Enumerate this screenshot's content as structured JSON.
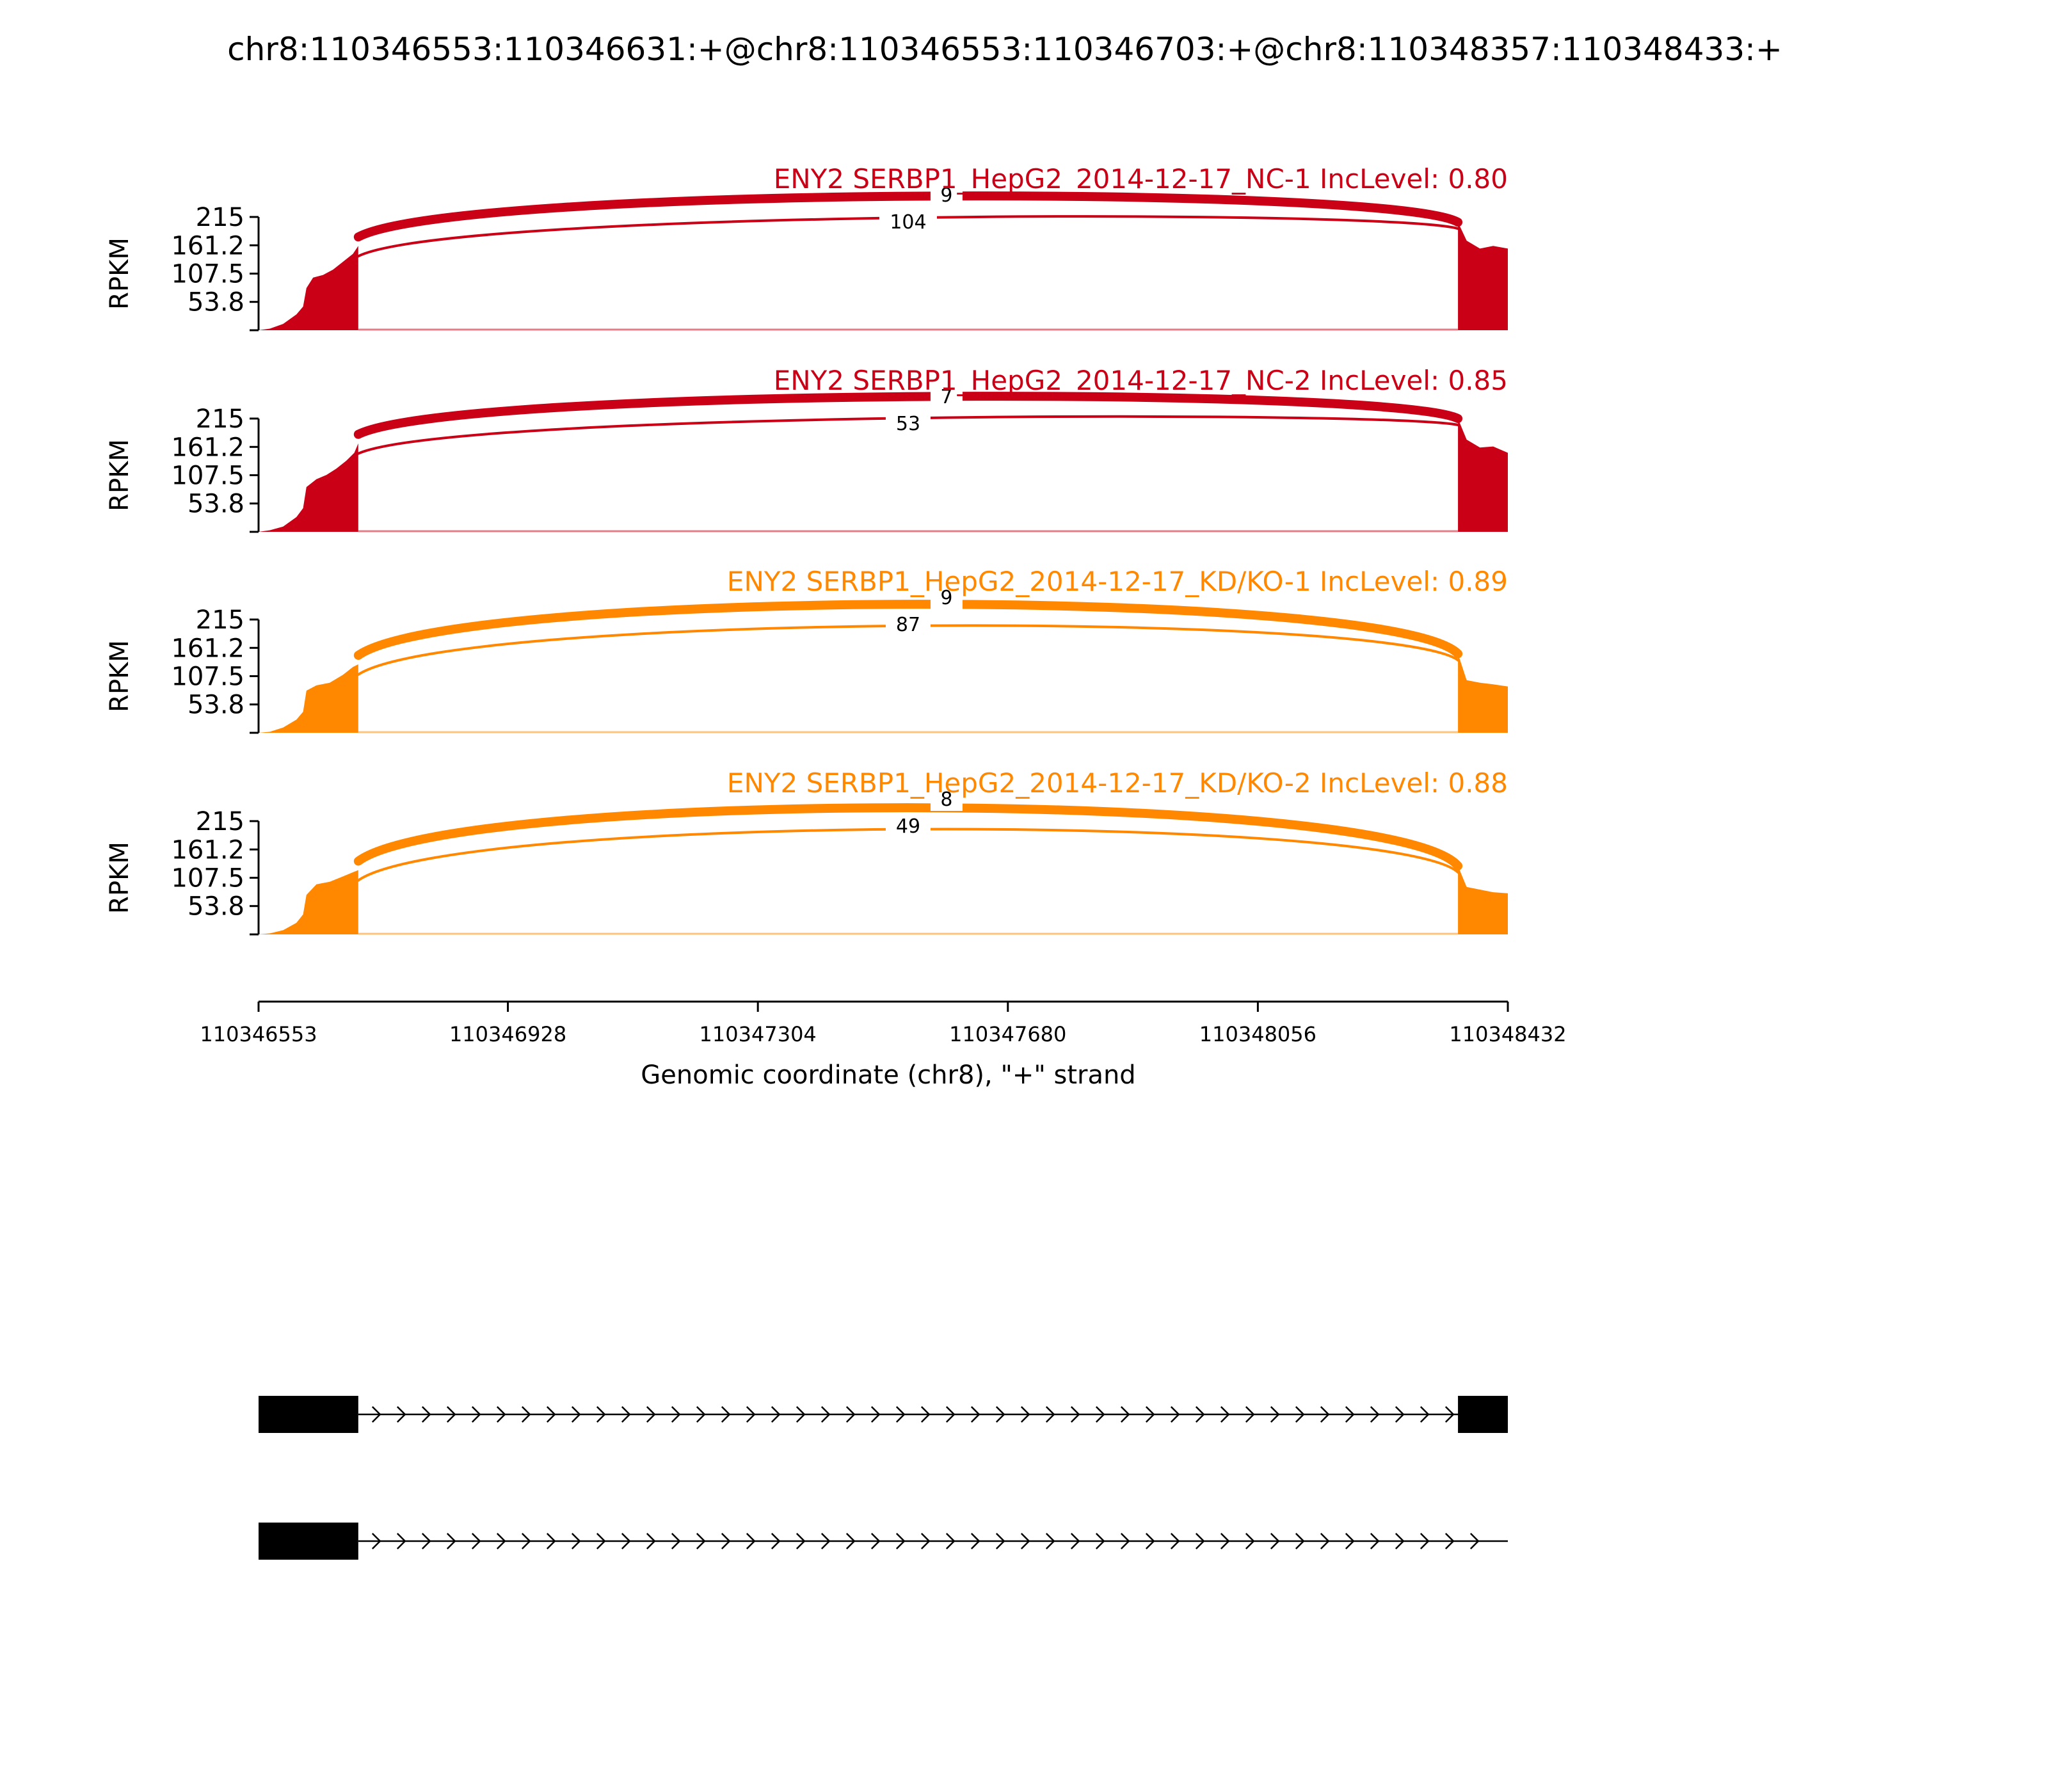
{
  "chart_data": {
    "type": "sashimi",
    "title": "chr8:110346553:110346631:+@chr8:110346553:110346703:+@chr8:110348357:110348433:+",
    "ylabel": "RPKM",
    "xlabel": "Genomic coordinate (chr8), \"+\" strand",
    "xlim": [
      110346553,
      110348432
    ],
    "x_ticks": [
      110346553,
      110346928,
      110347304,
      110347680,
      110348056,
      110348432
    ],
    "x_tick_labels": [
      "110346553",
      "110346928",
      "110347304",
      "110347680",
      "110348056",
      "110348432"
    ],
    "ylim": [
      0,
      215
    ],
    "y_ticks": [
      53.8,
      107.5,
      161.2,
      215
    ],
    "y_tick_labels": [
      "53.8",
      "107.5",
      "161.2",
      "215"
    ],
    "colors": {
      "NC": "#c90016",
      "KD": "#ff8800"
    },
    "tracks": [
      {
        "label": "ENY2 SERBP1_HepG2_2014-12-17_NC-1 IncLevel: 0.80",
        "group": "NC",
        "color": "#c90016",
        "junctions": [
          {
            "start": 110346703,
            "end": 110348357,
            "count": 104,
            "count_label": "104",
            "weight": "thin"
          },
          {
            "start": 110346703,
            "end": 110348357,
            "count": 9,
            "count_label": "9",
            "weight": "thick"
          }
        ],
        "coverage": [
          {
            "x": 110346553,
            "y": 0
          },
          {
            "x": 110346570,
            "y": 3
          },
          {
            "x": 110346590,
            "y": 12
          },
          {
            "x": 110346610,
            "y": 30
          },
          {
            "x": 110346620,
            "y": 45
          },
          {
            "x": 110346625,
            "y": 80
          },
          {
            "x": 110346635,
            "y": 100
          },
          {
            "x": 110346650,
            "y": 105
          },
          {
            "x": 110346665,
            "y": 115
          },
          {
            "x": 110346680,
            "y": 130
          },
          {
            "x": 110346695,
            "y": 145
          },
          {
            "x": 110346703,
            "y": 160
          },
          {
            "x": 110348357,
            "y": 205
          },
          {
            "x": 110348370,
            "y": 170
          },
          {
            "x": 110348390,
            "y": 155
          },
          {
            "x": 110348410,
            "y": 160
          },
          {
            "x": 110348432,
            "y": 155
          }
        ]
      },
      {
        "label": "ENY2 SERBP1_HepG2_2014-12-17_NC-2 IncLevel: 0.85",
        "group": "NC",
        "color": "#c90016",
        "junctions": [
          {
            "start": 110346703,
            "end": 110348357,
            "count": 53,
            "count_label": "53",
            "weight": "thin"
          },
          {
            "start": 110346703,
            "end": 110348357,
            "count": 7,
            "count_label": "7",
            "weight": "thick"
          }
        ],
        "coverage": [
          {
            "x": 110346553,
            "y": 0
          },
          {
            "x": 110346570,
            "y": 3
          },
          {
            "x": 110346590,
            "y": 10
          },
          {
            "x": 110346610,
            "y": 28
          },
          {
            "x": 110346620,
            "y": 45
          },
          {
            "x": 110346625,
            "y": 85
          },
          {
            "x": 110346640,
            "y": 100
          },
          {
            "x": 110346655,
            "y": 108
          },
          {
            "x": 110346670,
            "y": 120
          },
          {
            "x": 110346685,
            "y": 135
          },
          {
            "x": 110346697,
            "y": 150
          },
          {
            "x": 110346703,
            "y": 168
          },
          {
            "x": 110348357,
            "y": 215
          },
          {
            "x": 110348370,
            "y": 175
          },
          {
            "x": 110348390,
            "y": 160
          },
          {
            "x": 110348410,
            "y": 162
          },
          {
            "x": 110348432,
            "y": 150
          }
        ]
      },
      {
        "label": "ENY2 SERBP1_HepG2_2014-12-17_KD/KO-1 IncLevel: 0.89",
        "group": "KD",
        "color": "#ff8800",
        "junctions": [
          {
            "start": 110346703,
            "end": 110348357,
            "count": 87,
            "count_label": "87",
            "weight": "thin"
          },
          {
            "start": 110346703,
            "end": 110348357,
            "count": 9,
            "count_label": "9",
            "weight": "thick"
          }
        ],
        "coverage": [
          {
            "x": 110346553,
            "y": 0
          },
          {
            "x": 110346570,
            "y": 2
          },
          {
            "x": 110346590,
            "y": 10
          },
          {
            "x": 110346610,
            "y": 25
          },
          {
            "x": 110346620,
            "y": 40
          },
          {
            "x": 110346625,
            "y": 80
          },
          {
            "x": 110346640,
            "y": 90
          },
          {
            "x": 110346660,
            "y": 95
          },
          {
            "x": 110346680,
            "y": 110
          },
          {
            "x": 110346695,
            "y": 125
          },
          {
            "x": 110346703,
            "y": 130
          },
          {
            "x": 110348357,
            "y": 150
          },
          {
            "x": 110348370,
            "y": 100
          },
          {
            "x": 110348390,
            "y": 95
          },
          {
            "x": 110348410,
            "y": 92
          },
          {
            "x": 110348432,
            "y": 88
          }
        ]
      },
      {
        "label": "ENY2 SERBP1_HepG2_2014-12-17_KD/KO-2 IncLevel: 0.88",
        "group": "KD",
        "color": "#ff8800",
        "junctions": [
          {
            "start": 110346703,
            "end": 110348357,
            "count": 49,
            "count_label": "49",
            "weight": "thin"
          },
          {
            "start": 110346703,
            "end": 110348357,
            "count": 8,
            "count_label": "8",
            "weight": "thick"
          }
        ],
        "coverage": [
          {
            "x": 110346553,
            "y": 0
          },
          {
            "x": 110346570,
            "y": 2
          },
          {
            "x": 110346590,
            "y": 8
          },
          {
            "x": 110346610,
            "y": 22
          },
          {
            "x": 110346620,
            "y": 38
          },
          {
            "x": 110346625,
            "y": 75
          },
          {
            "x": 110346640,
            "y": 95
          },
          {
            "x": 110346660,
            "y": 100
          },
          {
            "x": 110346680,
            "y": 110
          },
          {
            "x": 110346695,
            "y": 118
          },
          {
            "x": 110346703,
            "y": 122
          },
          {
            "x": 110348357,
            "y": 130
          },
          {
            "x": 110348370,
            "y": 90
          },
          {
            "x": 110348390,
            "y": 85
          },
          {
            "x": 110348410,
            "y": 80
          },
          {
            "x": 110348432,
            "y": 78
          }
        ]
      }
    ],
    "isoforms": [
      {
        "exons": [
          [
            110346553,
            110346703
          ],
          [
            110348357,
            110348432
          ]
        ],
        "intron": [
          110346703,
          110348432
        ],
        "strand": "+"
      },
      {
        "exons": [
          [
            110346553,
            110346703
          ]
        ],
        "intron": [
          110346703,
          110348432
        ],
        "strand": "+"
      }
    ]
  }
}
